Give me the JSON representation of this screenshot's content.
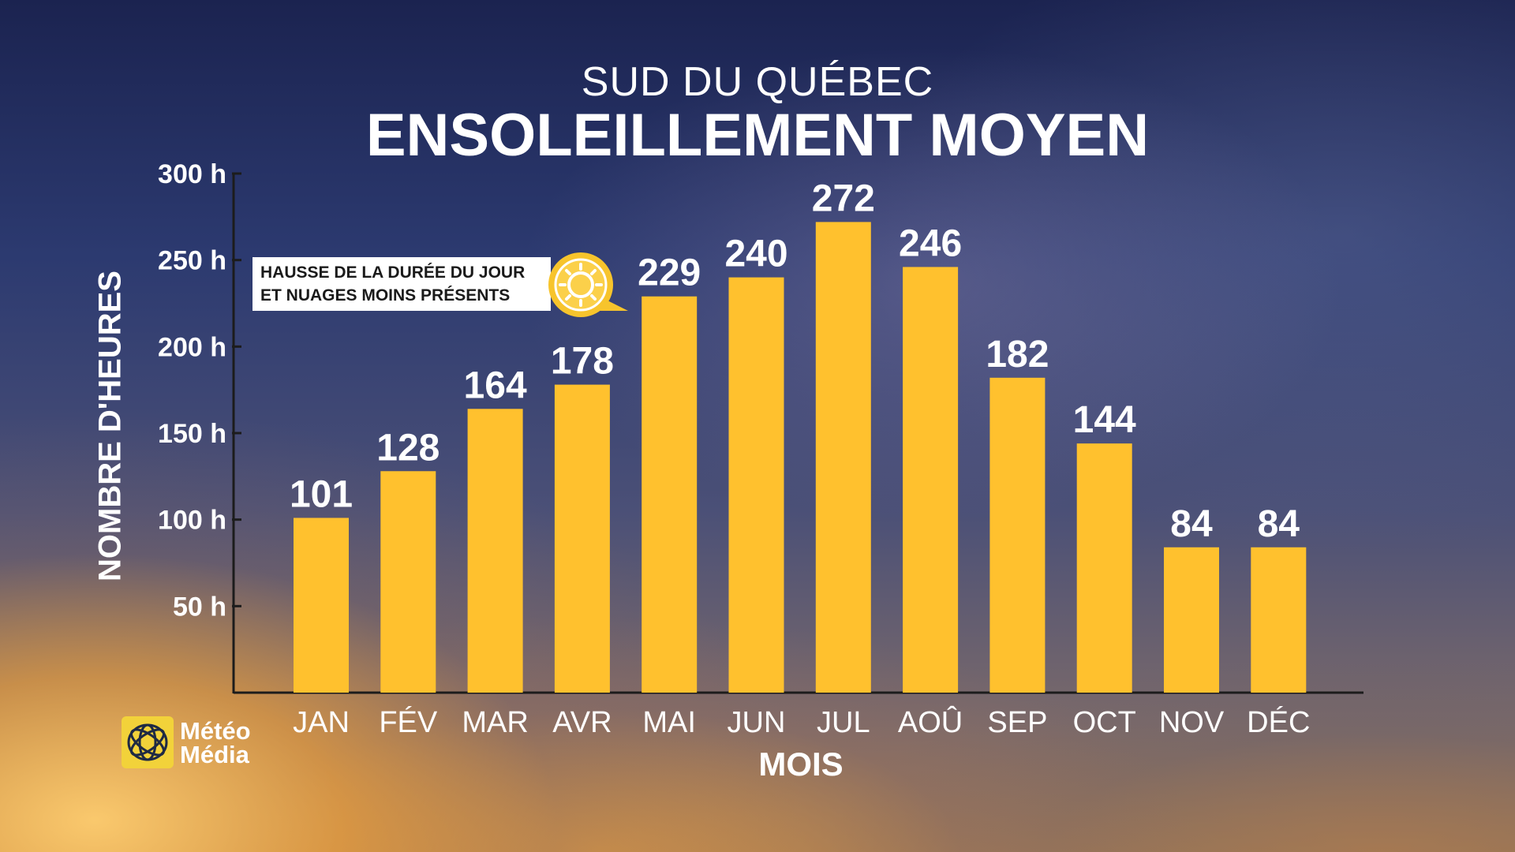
{
  "header": {
    "subtitle": "SUD DU QUÉBEC",
    "title": "ENSOLEILLEMENT MOYEN"
  },
  "callout": {
    "line1": "HAUSSE DE LA DURÉE DU JOUR",
    "line2": "ET NUAGES MOINS PRÉSENTS",
    "icon": "sun-icon"
  },
  "logo": {
    "line1": "Météo",
    "line2": "Média"
  },
  "colors": {
    "bar": "#ffc12e",
    "axis": "#1c1c1c",
    "text": "#ffffff",
    "callout_bg": "#ffffff",
    "badge": "#f7c42c"
  },
  "chart_data": {
    "type": "bar",
    "title": "ENSOLEILLEMENT MOYEN",
    "subtitle": "SUD DU QUÉBEC",
    "xlabel": "MOIS",
    "ylabel": "NOMBRE D'HEURES",
    "categories": [
      "JAN",
      "FÉV",
      "MAR",
      "AVR",
      "MAI",
      "JUN",
      "JUL",
      "AOÛ",
      "SEP",
      "OCT",
      "NOV",
      "DÉC"
    ],
    "values": [
      101,
      128,
      164,
      178,
      229,
      240,
      272,
      246,
      182,
      144,
      84,
      84
    ],
    "ylim": [
      0,
      300
    ],
    "yticks": [
      50,
      100,
      150,
      200,
      250,
      300
    ],
    "ytick_labels": [
      "50 h",
      "100 h",
      "150 h",
      "200 h",
      "250 h",
      "300 h"
    ],
    "grid": false,
    "legend": "none"
  }
}
